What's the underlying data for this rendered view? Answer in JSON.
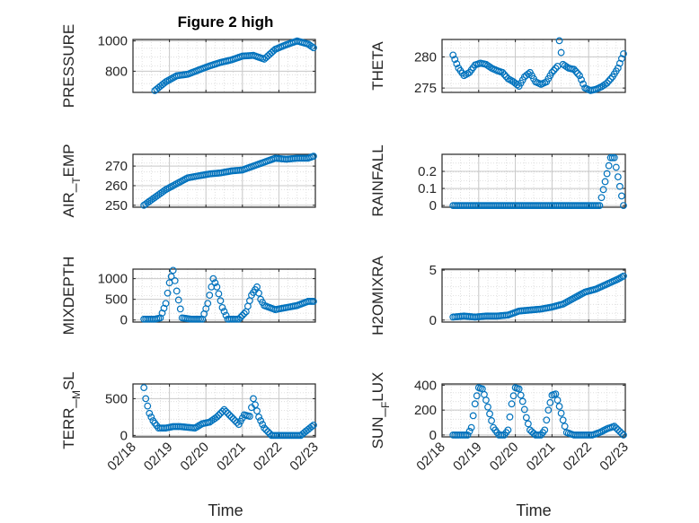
{
  "figure": {
    "title": "Figure 2 high",
    "xlabel": "Time",
    "x_ticks": [
      "02/18",
      "02/19",
      "02/20",
      "02/21",
      "02/22",
      "02/23"
    ]
  },
  "colors": {
    "marker": "#0072BD",
    "axis": "#262626",
    "grid": "#d9d9d9",
    "background": "#ffffff"
  },
  "chart_data": [
    {
      "type": "scatter",
      "ylabel": "PRESSURE",
      "ylim": [
        660,
        1010
      ],
      "yticks": [
        800,
        1000
      ],
      "ytick_labels": [
        "800",
        "1000"
      ],
      "x": [
        0.6,
        0.9,
        1.2,
        1.5,
        1.8,
        2.1,
        2.4,
        2.7,
        3.0,
        3.3,
        3.6,
        3.9,
        4.2,
        4.5,
        4.8,
        4.95
      ],
      "y": [
        672,
        730,
        770,
        780,
        808,
        835,
        858,
        875,
        900,
        905,
        880,
        945,
        975,
        1000,
        980,
        955
      ]
    },
    {
      "type": "scatter",
      "ylabel": "THETA",
      "ylim": [
        274.3,
        282.8
      ],
      "yticks": [
        275,
        280
      ],
      "ytick_labels": [
        "275",
        "280"
      ],
      "x": [
        0.3,
        0.45,
        0.6,
        0.75,
        0.9,
        1.05,
        1.2,
        1.35,
        1.5,
        1.65,
        1.8,
        1.95,
        2.1,
        2.25,
        2.4,
        2.55,
        2.7,
        2.85,
        3.0,
        3.15,
        3.2,
        3.3,
        3.45,
        3.6,
        3.75,
        3.9,
        4.05,
        4.2,
        4.35,
        4.5,
        4.65,
        4.8,
        4.95
      ],
      "y": [
        280.3,
        278.2,
        277.0,
        277.5,
        278.7,
        279.0,
        278.8,
        278.2,
        277.8,
        277.5,
        276.5,
        276.0,
        275.3,
        276.8,
        277.5,
        276.0,
        275.6,
        276.0,
        277.5,
        278.5,
        282.6,
        278.8,
        278.2,
        278.0,
        277.0,
        275.0,
        274.6,
        274.8,
        275.2,
        275.8,
        276.8,
        278.2,
        280.5
      ]
    },
    {
      "type": "scatter",
      "ylabel": "AIR_TEMP",
      "ylim": [
        249,
        276
      ],
      "yticks": [
        250,
        260,
        270
      ],
      "ytick_labels": [
        "250",
        "260",
        "270"
      ],
      "x": [
        0.3,
        0.6,
        0.9,
        1.2,
        1.5,
        1.8,
        2.1,
        2.4,
        2.7,
        3.0,
        3.3,
        3.6,
        3.9,
        4.2,
        4.5,
        4.8,
        4.95
      ],
      "y": [
        250,
        254,
        258,
        261,
        264,
        265,
        266,
        266.5,
        267.5,
        268,
        270,
        272,
        274,
        273.5,
        274,
        274,
        275
      ]
    },
    {
      "type": "scatter",
      "ylabel": "RAINFALL",
      "ylim": [
        -0.01,
        0.3
      ],
      "yticks": [
        0,
        0.1,
        0.2
      ],
      "ytick_labels": [
        "0",
        "0.1",
        "0.2"
      ],
      "x": [
        0.3,
        0.8,
        1.3,
        1.8,
        2.3,
        2.8,
        3.3,
        3.8,
        4.3,
        4.6,
        4.7,
        4.95
      ],
      "y": [
        0,
        0,
        0,
        0,
        0,
        0,
        0,
        0,
        0,
        0.28,
        0.28,
        0
      ]
    },
    {
      "type": "scatter",
      "ylabel": "MIXDEPTH",
      "ylim": [
        -50,
        1230
      ],
      "yticks": [
        0,
        500,
        1000
      ],
      "ytick_labels": [
        "0",
        "500",
        "1000"
      ],
      "x": [
        0.3,
        0.6,
        0.75,
        0.9,
        1.0,
        1.1,
        1.2,
        1.35,
        1.6,
        1.9,
        2.05,
        2.2,
        2.3,
        2.45,
        2.6,
        2.9,
        3.1,
        3.25,
        3.4,
        3.5,
        3.6,
        3.9,
        4.2,
        4.5,
        4.8,
        4.95
      ],
      "y": [
        20,
        20,
        50,
        400,
        900,
        1200,
        700,
        50,
        20,
        20,
        400,
        1000,
        800,
        300,
        20,
        20,
        200,
        600,
        800,
        500,
        350,
        250,
        300,
        350,
        450,
        450
      ]
    },
    {
      "type": "scatter",
      "ylabel": "H2OMIXRA",
      "ylim": [
        -0.2,
        5.1
      ],
      "yticks": [
        0,
        5
      ],
      "ytick_labels": [
        "0",
        "5"
      ],
      "x": [
        0.3,
        0.6,
        0.9,
        1.2,
        1.5,
        1.8,
        2.1,
        2.4,
        2.7,
        3.0,
        3.3,
        3.6,
        3.9,
        4.2,
        4.5,
        4.8,
        4.95
      ],
      "y": [
        0.3,
        0.4,
        0.3,
        0.4,
        0.4,
        0.5,
        0.9,
        1.0,
        1.1,
        1.3,
        1.6,
        2.2,
        2.8,
        3.1,
        3.6,
        4.1,
        4.4
      ]
    },
    {
      "type": "scatter",
      "ylabel": "TERR_MSL",
      "ylim": [
        -20,
        700
      ],
      "yticks": [
        0,
        500
      ],
      "ytick_labels": [
        "0",
        "500"
      ],
      "x": [
        0.3,
        0.35,
        0.45,
        0.55,
        0.7,
        0.9,
        1.1,
        1.3,
        1.5,
        1.7,
        1.9,
        2.1,
        2.3,
        2.5,
        2.7,
        2.9,
        3.05,
        3.2,
        3.3,
        3.45,
        3.6,
        3.8,
        4.0,
        4.2,
        4.4,
        4.6,
        4.8,
        4.95
      ],
      "y": [
        650,
        500,
        300,
        200,
        100,
        100,
        120,
        120,
        110,
        100,
        160,
        180,
        250,
        350,
        250,
        150,
        280,
        260,
        500,
        250,
        100,
        0,
        0,
        0,
        0,
        0,
        80,
        140
      ]
    },
    {
      "type": "scatter",
      "ylabel": "SUN_FLUX",
      "ylim": [
        -15,
        410
      ],
      "yticks": [
        0,
        200,
        400
      ],
      "ytick_labels": [
        "0",
        "200",
        "400"
      ],
      "x": [
        0.3,
        0.7,
        0.8,
        0.9,
        1.0,
        1.1,
        1.2,
        1.3,
        1.4,
        1.55,
        1.7,
        1.8,
        1.9,
        2.0,
        2.1,
        2.2,
        2.3,
        2.4,
        2.55,
        2.7,
        2.8,
        2.9,
        3.0,
        3.1,
        3.2,
        3.3,
        3.4,
        3.6,
        3.8,
        4.1,
        4.3,
        4.5,
        4.7,
        4.95
      ],
      "y": [
        0,
        0,
        60,
        250,
        380,
        370,
        280,
        170,
        60,
        0,
        0,
        40,
        250,
        380,
        370,
        270,
        140,
        40,
        0,
        0,
        40,
        200,
        320,
        330,
        230,
        120,
        20,
        0,
        0,
        0,
        20,
        50,
        70,
        0
      ]
    }
  ]
}
